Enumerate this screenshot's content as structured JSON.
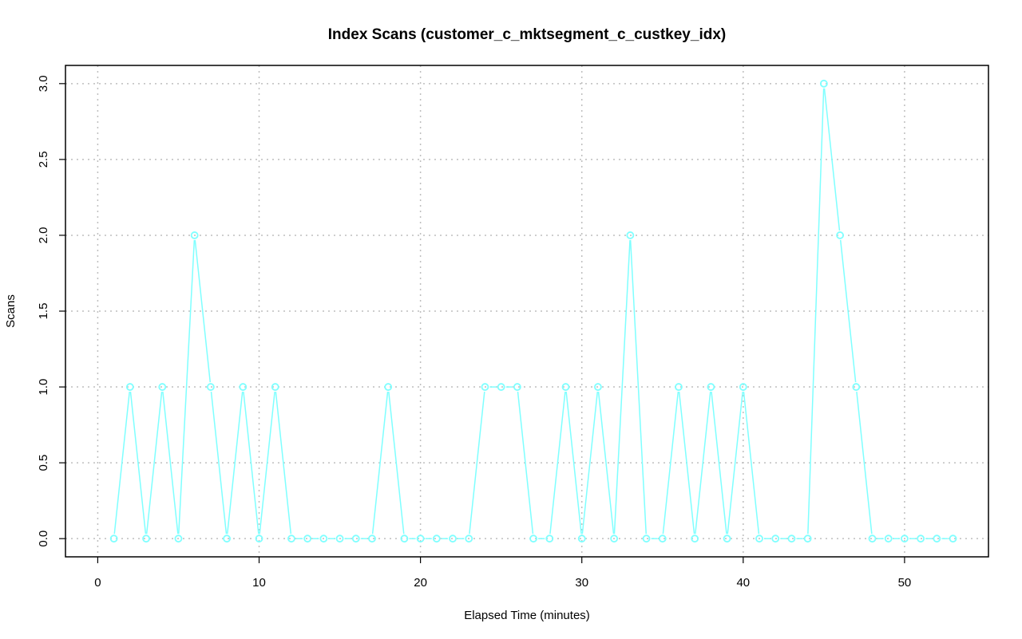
{
  "chart_data": {
    "type": "line",
    "title": "Index Scans (customer_c_mktsegment_c_custkey_idx)",
    "xlabel": "Elapsed Time (minutes)",
    "ylabel": "Scans",
    "xlim": [
      -2,
      55.2
    ],
    "ylim": [
      -0.12,
      3.12
    ],
    "x_ticks": [
      0,
      10,
      20,
      30,
      40,
      50
    ],
    "y_ticks": [
      0.0,
      0.5,
      1.0,
      1.5,
      2.0,
      2.5,
      3.0
    ],
    "x_tick_labels": [
      "0",
      "10",
      "20",
      "30",
      "40",
      "50"
    ],
    "y_tick_labels": [
      "0.0",
      "0.5",
      "1.0",
      "1.5",
      "2.0",
      "2.5",
      "3.0"
    ],
    "grid": true,
    "series_color": "#7fffff",
    "x": [
      1,
      2,
      3,
      4,
      5,
      6,
      7,
      8,
      9,
      10,
      11,
      12,
      13,
      14,
      15,
      16,
      17,
      18,
      19,
      20,
      21,
      22,
      23,
      24,
      25,
      26,
      27,
      28,
      29,
      30,
      31,
      32,
      33,
      34,
      35,
      36,
      37,
      38,
      39,
      40,
      41,
      42,
      43,
      44,
      45,
      46,
      47,
      48,
      49,
      50,
      51,
      52,
      53
    ],
    "values": [
      0,
      1,
      0,
      1,
      0,
      2,
      1,
      0,
      1,
      0,
      1,
      0,
      0,
      0,
      0,
      0,
      0,
      1,
      0,
      0,
      0,
      0,
      0,
      1,
      1,
      1,
      0,
      0,
      1,
      0,
      1,
      0,
      2,
      0,
      0,
      1,
      0,
      1,
      0,
      1,
      0,
      0,
      0,
      0,
      3,
      2,
      1,
      0,
      0,
      0,
      0,
      0,
      0
    ]
  }
}
